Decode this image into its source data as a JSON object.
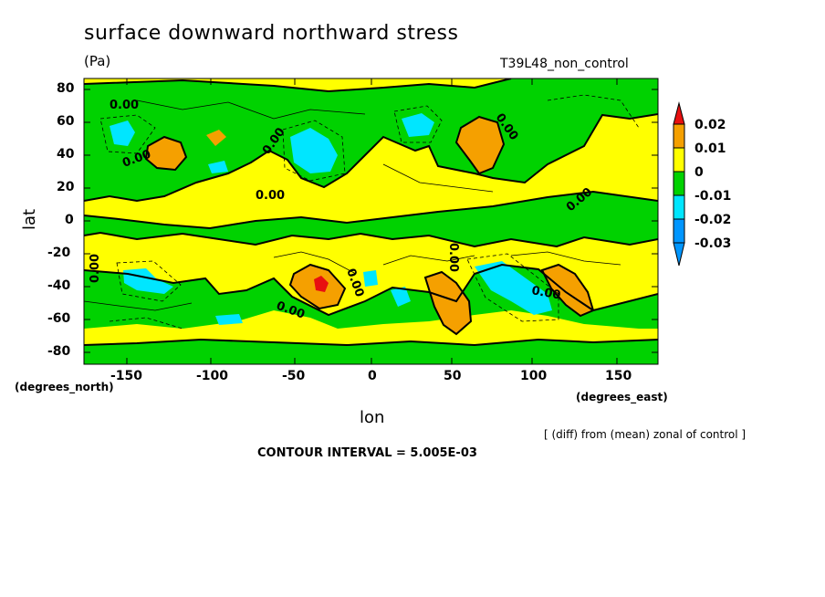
{
  "header": {
    "title": "surface downward northward stress",
    "units": "(Pa)",
    "run_name": "T39L48_non_control"
  },
  "axes": {
    "y_label": "lat",
    "x_label": "lon",
    "y_unit": "(degrees_north)",
    "x_unit": "(degrees_east)",
    "y_ticks": [
      "80",
      "60",
      "40",
      "20",
      "0",
      "-20",
      "-40",
      "-60",
      "-80"
    ],
    "x_ticks": [
      "-150",
      "-100",
      "-50",
      "0",
      "50",
      "100",
      "150"
    ]
  },
  "colorbar": {
    "labels": [
      "0.02",
      "0.01",
      "0",
      "-0.01",
      "-0.02",
      "-0.03"
    ],
    "colors": [
      "#e81010",
      "#f5a000",
      "#ffff00",
      "#00d200",
      "#00e6ff",
      "#0096ff"
    ]
  },
  "footer": {
    "diff_note": "[ (diff) from (mean) zonal of control ]",
    "contour_interval": "CONTOUR INTERVAL = 5.005E-03"
  },
  "contour_labels": [
    "0.00",
    "0.00",
    "0.00",
    "0.00",
    "0.00",
    "0.00",
    "0.00",
    "0.00",
    "0.00",
    "0.00",
    "0.00"
  ],
  "map": {
    "lon_range": [
      -180,
      180
    ],
    "lat_range": [
      -90,
      90
    ],
    "base_color": "#ffff00",
    "negative_color": "#00d200",
    "strong_negative_color": "#00e6ff",
    "positive_color": "#f5a000",
    "max_color": "#e81010"
  }
}
